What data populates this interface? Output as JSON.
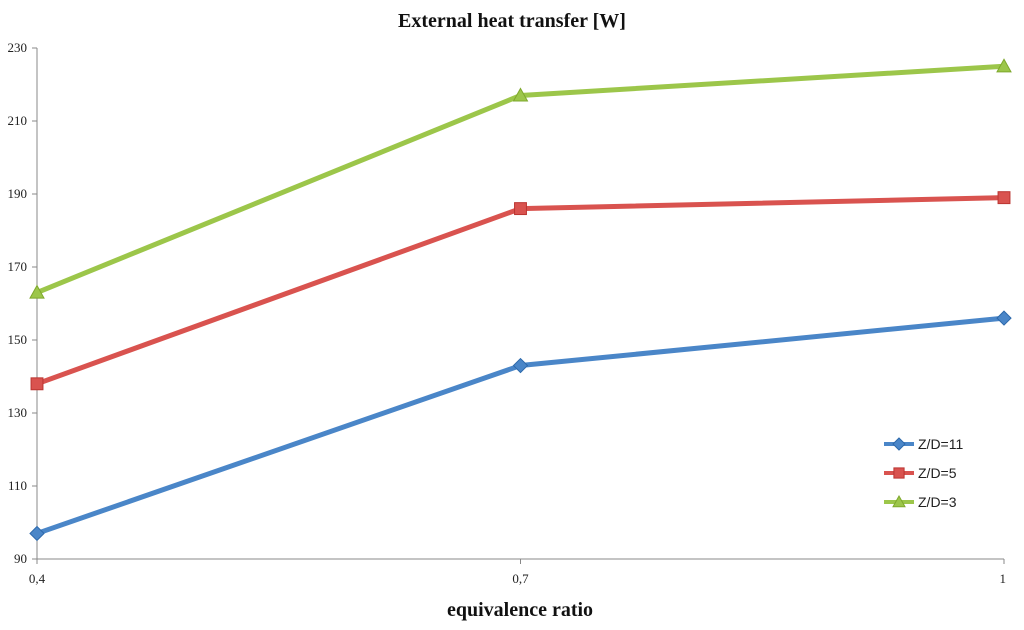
{
  "chart_data": {
    "type": "line",
    "title": "External heat transfer [W]",
    "xlabel": "equivalence ratio",
    "ylabel": "",
    "categories": [
      "0,4",
      "0,7",
      "1"
    ],
    "x": [
      0.4,
      0.7,
      1.0
    ],
    "ylim": [
      90,
      230
    ],
    "yticks": [
      90,
      110,
      130,
      150,
      170,
      190,
      210,
      230
    ],
    "grid": false,
    "legend_position": "right",
    "series": [
      {
        "name": "Z/D=11",
        "values": [
          97,
          143,
          156
        ],
        "color": "#4A86C8",
        "marker": "diamond"
      },
      {
        "name": "Z/D=5",
        "values": [
          138,
          186,
          189
        ],
        "color": "#D9534F",
        "marker": "square"
      },
      {
        "name": "Z/D=3",
        "values": [
          163,
          217,
          225
        ],
        "color": "#9CC64A",
        "marker": "triangle"
      }
    ]
  }
}
